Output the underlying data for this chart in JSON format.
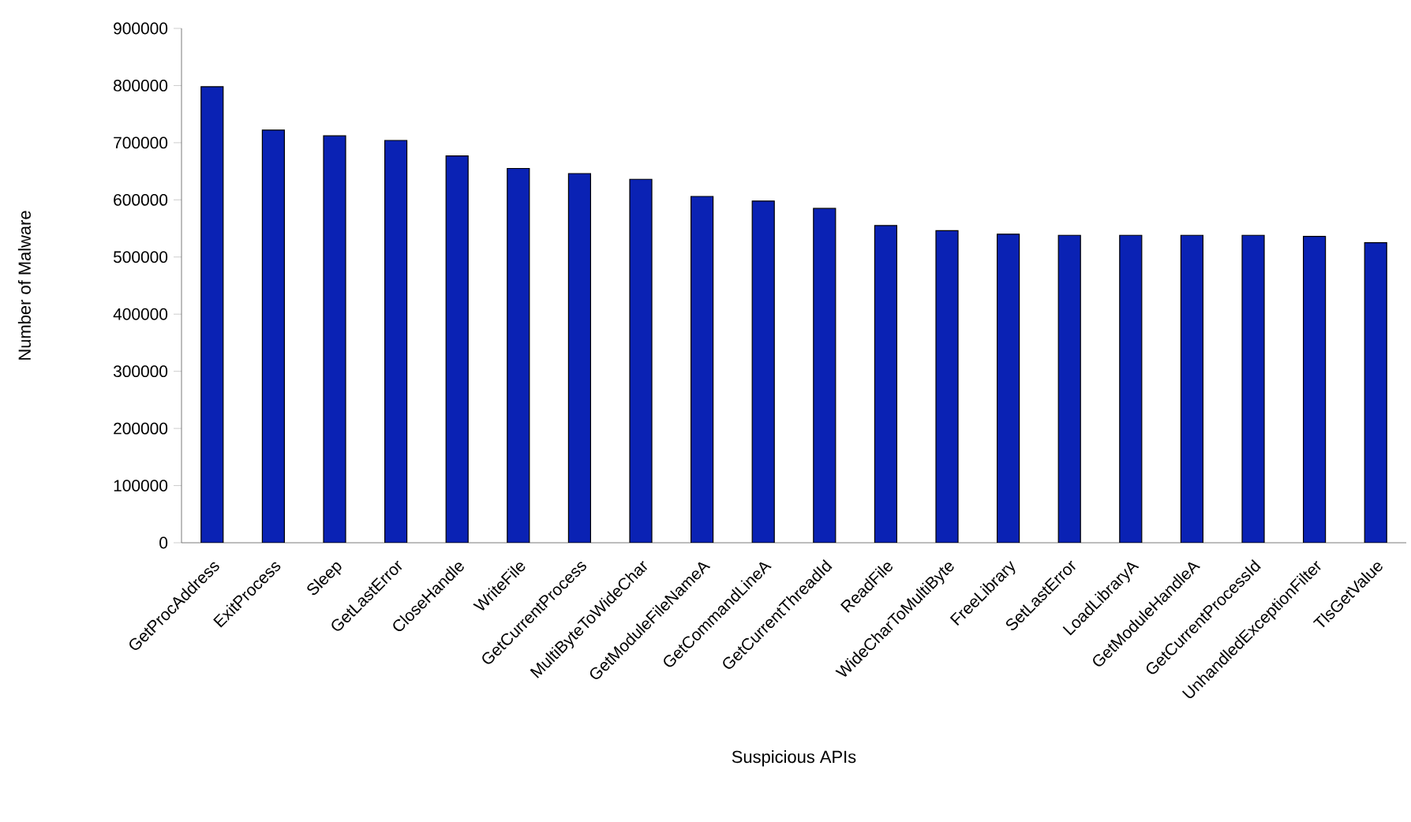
{
  "chart_data": {
    "type": "bar",
    "xlabel": "Suspicious APIs",
    "ylabel": "Number of Malware",
    "categories": [
      "GetProcAddress",
      "ExitProcess",
      "Sleep",
      "GetLastError",
      "CloseHandle",
      "WriteFile",
      "GetCurrentProcess",
      "MultiByteToWideChar",
      "GetModuleFileNameA",
      "GetCommandLineA",
      "GetCurrentThreadId",
      "ReadFile",
      "WideCharToMultiByte",
      "FreeLibrary",
      "SetLastError",
      "LoadLibraryA",
      "GetModuleHandleA",
      "GetCurrentProcessId",
      "UnhandledExceptionFilter",
      "TlsGetValue"
    ],
    "values": [
      798000,
      722000,
      712000,
      704000,
      677000,
      655000,
      646000,
      636000,
      606000,
      598000,
      585000,
      555000,
      546000,
      540000,
      538000,
      538000,
      538000,
      538000,
      536000,
      525000
    ],
    "color": "#0a22b4",
    "ylim": [
      0,
      900000
    ],
    "yticks": [
      0,
      100000,
      200000,
      300000,
      400000,
      500000,
      600000,
      700000,
      800000,
      900000
    ],
    "grid": false
  }
}
